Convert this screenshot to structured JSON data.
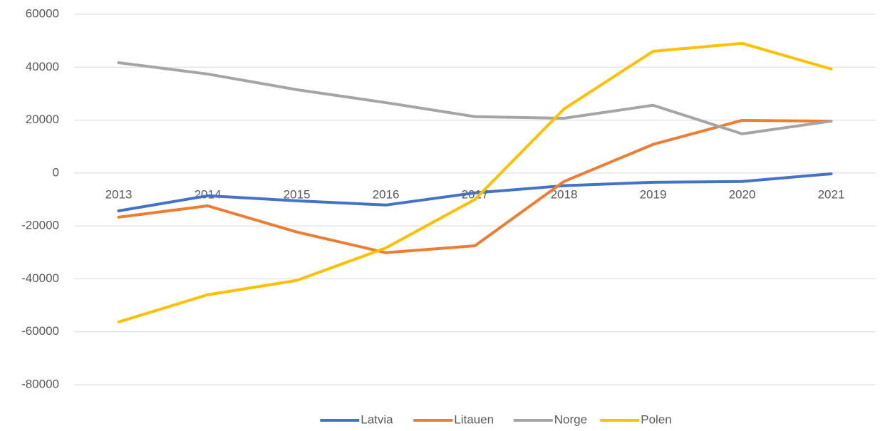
{
  "chart_data": {
    "type": "line",
    "categories": [
      "2013",
      "2014",
      "2015",
      "2016",
      "2017",
      "2018",
      "2019",
      "2020",
      "2021"
    ],
    "series": [
      {
        "name": "Latvia",
        "color": "#4472c4",
        "values": [
          -14300,
          -8600,
          -10500,
          -12100,
          -7500,
          -4800,
          -3500,
          -3200,
          -300
        ]
      },
      {
        "name": "Litauen",
        "color": "#ed7d31",
        "values": [
          -16700,
          -12400,
          -22300,
          -30100,
          -27500,
          -3200,
          10800,
          19900,
          19600
        ]
      },
      {
        "name": "Norge",
        "color": "#a5a5a5",
        "values": [
          41700,
          37400,
          31500,
          26600,
          21300,
          20700,
          25600,
          14800,
          19600
        ]
      },
      {
        "name": "Polen",
        "color": "#ffc000",
        "values": [
          -56300,
          -46000,
          -40600,
          -28300,
          -10000,
          24200,
          46000,
          49000,
          39300
        ]
      }
    ],
    "ylim": [
      -80000,
      60000
    ],
    "yticks": [
      -80000,
      -60000,
      -40000,
      -20000,
      0,
      20000,
      40000,
      60000
    ],
    "grid": true,
    "legend": "bottom"
  }
}
